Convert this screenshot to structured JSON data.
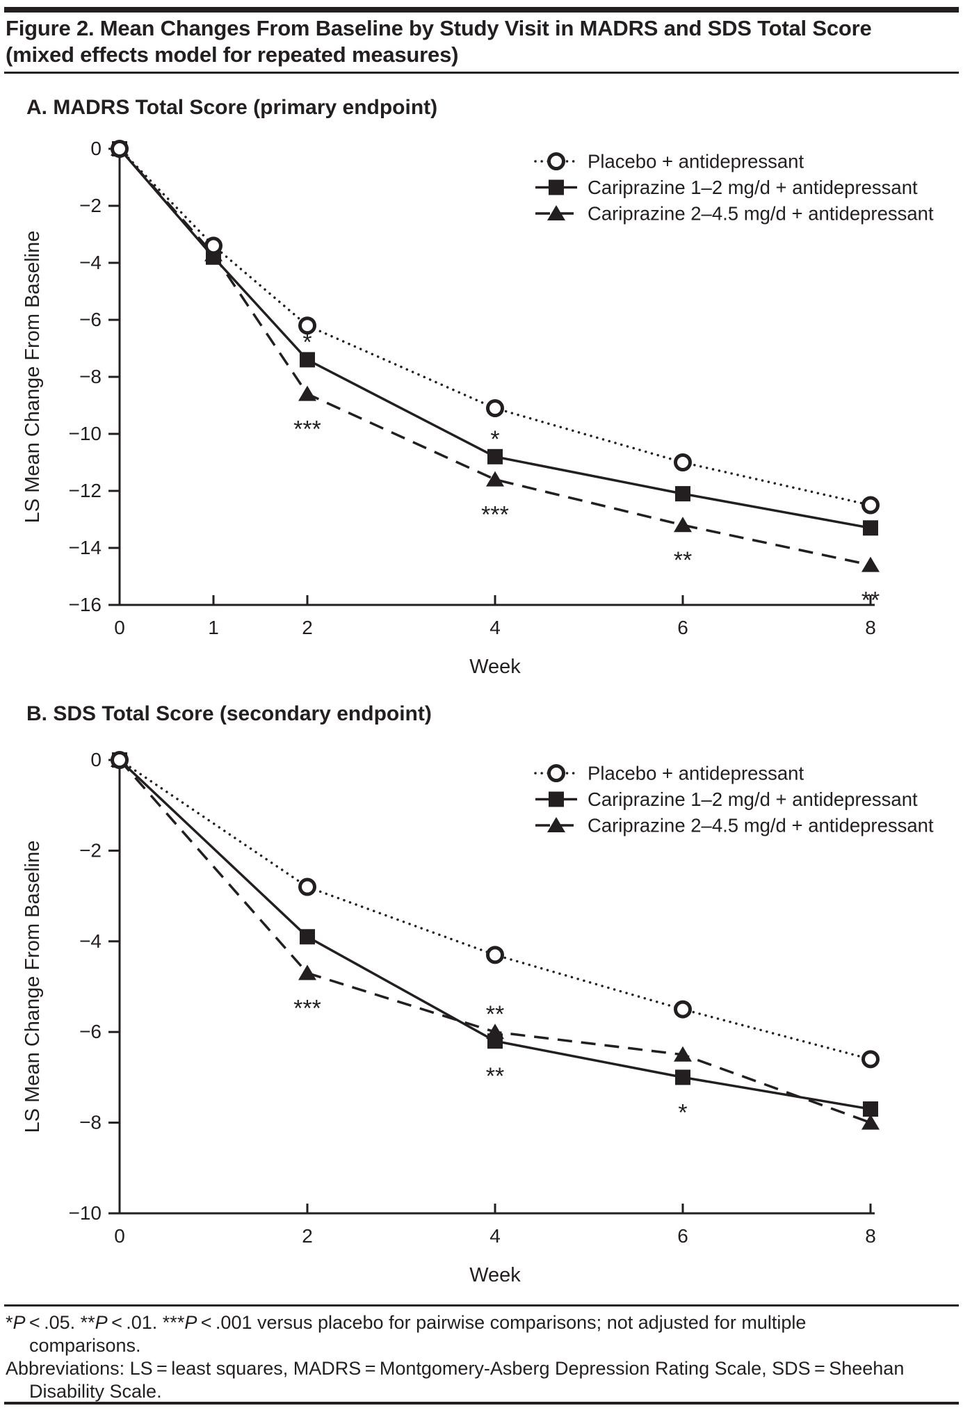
{
  "header": {
    "title_line1": "Figure 2. Mean Changes From Baseline by Study Visit in MADRS and SDS Total Score",
    "title_line2": "(mixed effects model for repeated measures)"
  },
  "colors": {
    "ink": "#231f20",
    "background": "#ffffff"
  },
  "chart_data": [
    {
      "type": "line",
      "panel_label": "A. MADRS Total Score (primary endpoint)",
      "xlabel": "Week",
      "ylabel": "LS Mean Change From Baseline",
      "xlim": [
        0,
        8
      ],
      "ylim": [
        -16,
        0
      ],
      "xticks": [
        0,
        1,
        2,
        4,
        6,
        8
      ],
      "yticks": [
        0,
        -2,
        -4,
        -6,
        -8,
        -10,
        -12,
        -14,
        -16
      ],
      "grid": false,
      "legend_position": "top-right",
      "series": [
        {
          "name": "Placebo + antidepressant",
          "marker": "circle-open",
          "line": "dotted",
          "x": [
            0,
            1,
            2,
            4,
            6,
            8
          ],
          "values": [
            0,
            -3.4,
            -6.2,
            -9.1,
            -11.0,
            -12.5
          ]
        },
        {
          "name": "Cariprazine 1–2 mg/d + antidepressant",
          "marker": "square-filled",
          "line": "solid",
          "x": [
            0,
            1,
            2,
            4,
            6,
            8
          ],
          "values": [
            0,
            -3.8,
            -7.4,
            -10.8,
            -12.1,
            -13.3
          ]
        },
        {
          "name": "Cariprazine 2–4.5 mg/d + antidepressant",
          "marker": "triangle-filled",
          "line": "dashed",
          "x": [
            0,
            1,
            2,
            4,
            6,
            8
          ],
          "values": [
            0,
            -3.7,
            -8.6,
            -11.6,
            -13.2,
            -14.6
          ]
        }
      ],
      "annotations": [
        {
          "series": 1,
          "x": 2,
          "label": "*",
          "position": "above"
        },
        {
          "series": 1,
          "x": 4,
          "label": "*",
          "position": "above"
        },
        {
          "series": 2,
          "x": 2,
          "label": "***",
          "position": "below"
        },
        {
          "series": 2,
          "x": 4,
          "label": "***",
          "position": "below"
        },
        {
          "series": 2,
          "x": 6,
          "label": "**",
          "position": "below"
        },
        {
          "series": 2,
          "x": 8,
          "label": "**",
          "position": "below"
        }
      ]
    },
    {
      "type": "line",
      "panel_label": "B. SDS Total Score (secondary endpoint)",
      "xlabel": "Week",
      "ylabel": "LS Mean Change From Baseline",
      "xlim": [
        0,
        8
      ],
      "ylim": [
        -10,
        0
      ],
      "xticks": [
        0,
        2,
        4,
        6,
        8
      ],
      "yticks": [
        0,
        -2,
        -4,
        -6,
        -8,
        -10
      ],
      "grid": false,
      "legend_position": "top-right",
      "series": [
        {
          "name": "Placebo + antidepressant",
          "marker": "circle-open",
          "line": "dotted",
          "x": [
            0,
            2,
            4,
            6,
            8
          ],
          "values": [
            0,
            -2.8,
            -4.3,
            -5.5,
            -6.6
          ]
        },
        {
          "name": "Cariprazine 1–2 mg/d + antidepressant",
          "marker": "square-filled",
          "line": "solid",
          "x": [
            0,
            2,
            4,
            6,
            8
          ],
          "values": [
            0,
            -3.9,
            -6.2,
            -7.0,
            -7.7
          ]
        },
        {
          "name": "Cariprazine 2–4.5 mg/d + antidepressant",
          "marker": "triangle-filled",
          "line": "dashed",
          "x": [
            0,
            2,
            4,
            6,
            8
          ],
          "values": [
            0,
            -4.7,
            -6.0,
            -6.5,
            -8.0
          ]
        }
      ],
      "annotations": [
        {
          "series": 2,
          "x": 2,
          "label": "***",
          "position": "below"
        },
        {
          "series": 2,
          "x": 4,
          "label": "**",
          "position": "above"
        },
        {
          "series": 1,
          "x": 4,
          "label": "**",
          "position": "below"
        },
        {
          "series": 1,
          "x": 6,
          "label": "*",
          "position": "below"
        }
      ]
    }
  ],
  "footnotes": {
    "significance_lines": [
      "*P < .05.  **P < .01.  ***P < .001 versus placebo for pairwise comparisons; not adjusted for multiple",
      "comparisons."
    ],
    "abbreviations_lines": [
      "Abbreviations: LS = least squares, MADRS = Montgomery-Asberg Depression Rating Scale, SDS = Sheehan",
      "Disability Scale."
    ]
  }
}
